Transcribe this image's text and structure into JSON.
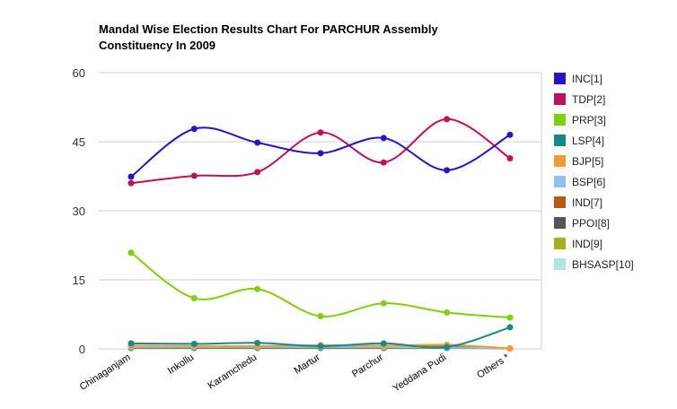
{
  "chart_data": {
    "type": "line",
    "title": [
      "Mandal Wise Election Results Chart For PARCHUR Assembly",
      "Constituency In 2009"
    ],
    "xlabel": "",
    "ylabel": "",
    "ylim": [
      0,
      60
    ],
    "yticks": [
      0,
      15,
      30,
      45,
      60
    ],
    "grid": true,
    "legend_position": "right",
    "categories": [
      "Chinaganjam",
      "Inkollu",
      "Karamchedu",
      "Martur",
      "Parchur",
      "Yeddana Pudi",
      "Others *"
    ],
    "series": [
      {
        "name": "INC[1]",
        "color": "#2a12c9",
        "values": [
          37.4,
          47.8,
          44.8,
          42.5,
          45.8,
          38.8,
          46.5
        ]
      },
      {
        "name": "TDP[2]",
        "color": "#c0105a",
        "values": [
          36.0,
          37.6,
          38.4,
          47.0,
          40.5,
          49.9,
          41.4
        ]
      },
      {
        "name": "PRP[3]",
        "color": "#7ed10a",
        "values": [
          20.9,
          11.0,
          13.0,
          7.1,
          9.9,
          7.9,
          6.8
        ]
      },
      {
        "name": "LSP[4]",
        "color": "#178a88",
        "values": [
          1.2,
          1.1,
          1.3,
          0.6,
          1.2,
          0.4,
          4.7
        ]
      },
      {
        "name": "BJP[5]",
        "color": "#f49a35",
        "values": [
          0.7,
          0.6,
          0.6,
          0.8,
          0.7,
          0.9,
          0.1
        ]
      },
      {
        "name": "BSP[6]",
        "color": "#8cc0f4",
        "values": [
          0.4,
          0.4,
          0.4,
          0.4,
          0.4,
          0.3,
          0.1
        ]
      },
      {
        "name": "IND[7]",
        "color": "#b85b0e",
        "values": [
          0.5,
          0.5,
          0.5,
          0.5,
          0.5,
          0.5,
          0.1
        ]
      },
      {
        "name": "PPOI[8]",
        "color": "#555555",
        "values": [
          0.3,
          0.3,
          0.3,
          0.3,
          0.3,
          0.3,
          0.1
        ]
      },
      {
        "name": "IND[9]",
        "color": "#a6b21a",
        "values": [
          0.2,
          0.2,
          0.2,
          0.2,
          0.2,
          0.2,
          0.1
        ]
      },
      {
        "name": "BHSASP[10]",
        "color": "#b1e6d9",
        "values": [
          0.1,
          0.1,
          0.1,
          0.1,
          0.1,
          0.1,
          0.1
        ]
      }
    ]
  }
}
